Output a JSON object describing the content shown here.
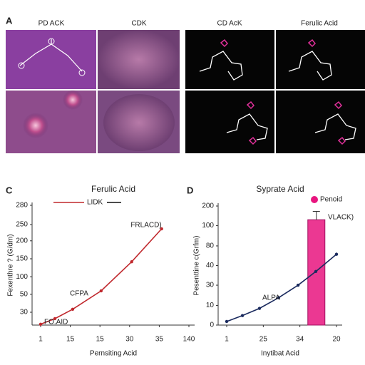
{
  "panels": {
    "a": {
      "label": "A",
      "images": [
        "PD ACK",
        "CDK",
        "CD AcK",
        "Ferulic Acid"
      ]
    },
    "c": {
      "label": "C"
    },
    "d": {
      "label": "D"
    }
  },
  "chart_data": [
    {
      "type": "line",
      "title": "Ferulic Acid",
      "xlabel": "Pernsiting Acid",
      "ylabel": "Fexenthre ? (G/dm)",
      "xlim": [
        0,
        5
      ],
      "xticks": [
        {
          "value": 0,
          "label": "1"
        },
        {
          "value": 1,
          "label": "15"
        },
        {
          "value": 2,
          "label": "15"
        },
        {
          "value": 3,
          "label": "30"
        },
        {
          "value": 4,
          "label": "35"
        },
        {
          "value": 5,
          "label": "140"
        }
      ],
      "ylim": [
        0,
        280
      ],
      "yticks": [
        30,
        {
          "value": 72,
          "label": "50"
        },
        {
          "value": 113,
          "label": "100"
        },
        {
          "value": 155,
          "label": "150"
        },
        {
          "value": 197,
          "label": "200"
        },
        {
          "value": 235,
          "label": "250"
        },
        280
      ],
      "series": [
        {
          "name": "LIDK",
          "color": "#c0282d",
          "x": [
            0,
            0.48,
            1.08,
            2.04,
            3.07,
            4.08
          ],
          "values": [
            2,
            15,
            37,
            80,
            148,
            225
          ]
        }
      ],
      "annotations": [
        "FO.AID",
        "CFPA",
        "FRLACD)"
      ]
    },
    {
      "type": "combo",
      "title": "Syprate Acid",
      "xlabel": "Inytibat Acid",
      "ylabel": "Pesenttine c(Grfm)",
      "xlim": [
        0,
        6
      ],
      "xticks": [
        {
          "value": 0,
          "label": "1"
        },
        {
          "value": 2,
          "label": "25"
        },
        {
          "value": 4,
          "label": "34"
        },
        {
          "value": 6,
          "label": "20"
        }
      ],
      "ylim": [
        0,
        200
      ],
      "yticks": [
        0,
        {
          "value": 33,
          "label": "10"
        },
        {
          "value": 67,
          "label": "30"
        },
        {
          "value": 100,
          "label": "40"
        },
        {
          "value": 133,
          "label": "80"
        },
        {
          "value": 167,
          "label": "100"
        },
        200
      ],
      "series": [
        {
          "color": "#1a2a5e",
          "x": [
            0,
            0.86,
            1.79,
            2.84,
            3.9,
            4.87,
            6
          ],
          "values": [
            6,
            16,
            28,
            46,
            67,
            90,
            119
          ]
        }
      ],
      "bars": {
        "name": "Penoid",
        "color": "#e8157f",
        "x": [
          4.9
        ],
        "values": [
          177
        ],
        "errors": [
          14
        ]
      },
      "annotations": [
        "ALPA",
        "VLACK)"
      ]
    }
  ]
}
